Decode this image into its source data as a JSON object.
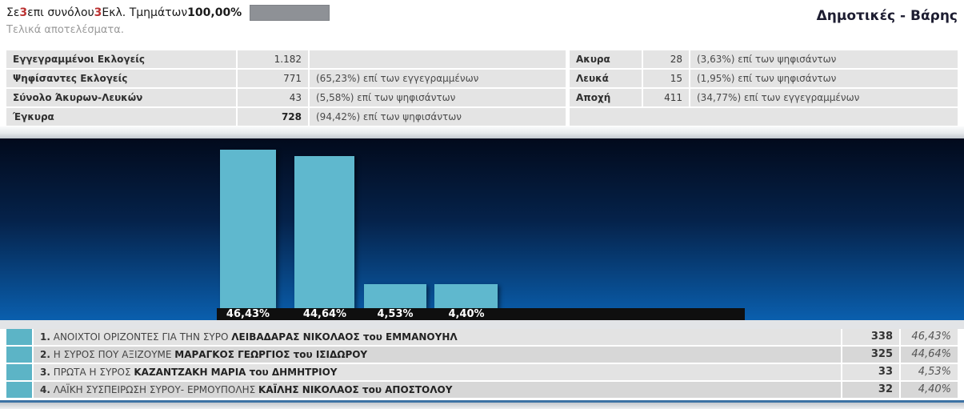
{
  "header": {
    "prefix": "Σε",
    "count_done": "3",
    "mid": "επι συνόλου",
    "count_total": "3",
    "suffix": "Εκλ. Τμημάτων",
    "percent": "100,00%",
    "status_text": "Τελικά αποτελέσματα.",
    "page_title": "Δημοτικές - Βάρης"
  },
  "summary_left": {
    "rows": [
      {
        "label": "Εγγεγραμμένοι Εκλογείς",
        "value": "1.182",
        "note": ""
      },
      {
        "label": "Ψηφίσαντες Εκλογείς",
        "value": "771",
        "note": "(65,23%) επί των εγγεγραμμένων"
      },
      {
        "label": "Σύνολο Άκυρων-Λευκών",
        "value": "43",
        "note": "(5,58%) επί των ψηφισάντων"
      },
      {
        "label": "Έγκυρα",
        "value": "728",
        "note": "(94,42%) επί των ψηφισάντων"
      }
    ]
  },
  "summary_right": {
    "rows": [
      {
        "label": "Ακυρα",
        "value": "28",
        "note": "(3,63%) επί των ψηφισάντων"
      },
      {
        "label": "Λευκά",
        "value": "15",
        "note": "(1,95%) επί των ψηφισάντων"
      },
      {
        "label": "Αποχή",
        "value": "411",
        "note": "(34,77%) επί των εγγεγραμμένων"
      }
    ]
  },
  "chart_data": {
    "type": "bar",
    "title": "",
    "xlabel": "",
    "ylabel": "",
    "categories": [
      "ΑΝΟΙΧΤΟΙ ΟΡΙΖΟΝΤΕΣ ΓΙΑ ΤΗΝ ΣΥΡΟ — ΛΕΙΒΑΔΑΡΑΣ ΝΙΚΟΛΑΟΣ του ΕΜΜΑΝΟΥΗΛ",
      "Η ΣΥΡΟΣ ΠΟΥ ΑΞΙΖΟΥΜΕ — ΜΑΡΑΓΚΟΣ ΓΕΩΡΓΙΟΣ του ΙΣΙΔΩΡΟΥ",
      "ΠΡΩΤΑ Η ΣΥΡΟΣ — ΚΑΖΑΝΤΖΑΚΗ ΜΑΡΙΑ του ΔΗΜΗΤΡΙΟΥ",
      "ΛΑΪΚΗ ΣΥΣΠΕΙΡΩΣΗ ΣΥΡΟΥ- ΕΡΜΟΥΠΟΛΗΣ — ΚΑΪΛΗΣ ΝΙΚΟΛΑΟΣ του ΑΠΟΣΤΟΛΟΥ"
    ],
    "values": [
      46.43,
      44.64,
      4.53,
      4.4
    ],
    "labels": [
      "46,43%",
      "44,64%",
      "4,53%",
      "4,40%"
    ],
    "votes": [
      338,
      325,
      33,
      32
    ],
    "ylim": [
      0,
      50
    ],
    "grid": false,
    "legend": false,
    "bar_color": "#5fb8ce",
    "background_top": "#020a1c",
    "background_bottom": "#0a5fae",
    "label_strip_color": "#0f0f0f"
  },
  "results": {
    "rows": [
      {
        "rank": "1.",
        "party": "ΑΝΟΙΧΤΟΙ ΟΡΙΖΟΝΤΕΣ ΓΙΑ ΤΗΝ ΣΥΡΟ",
        "candidate": "ΛΕΙΒΑΔΑΡΑΣ ΝΙΚΟΛΑΟΣ του ΕΜΜΑΝΟΥΗΛ",
        "votes": "338",
        "percent": "46,43%"
      },
      {
        "rank": "2.",
        "party": "Η ΣΥΡΟΣ ΠΟΥ ΑΞΙΖΟΥΜΕ",
        "candidate": "ΜΑΡΑΓΚΟΣ ΓΕΩΡΓΙΟΣ του ΙΣΙΔΩΡΟΥ",
        "votes": "325",
        "percent": "44,64%"
      },
      {
        "rank": "3.",
        "party": "ΠΡΩΤΑ Η ΣΥΡΟΣ",
        "candidate": "ΚΑΖΑΝΤΖΑΚΗ ΜΑΡΙΑ του ΔΗΜΗΤΡΙΟΥ",
        "votes": "33",
        "percent": "4,53%"
      },
      {
        "rank": "4.",
        "party": "ΛΑΪΚΗ ΣΥΣΠΕΙΡΩΣΗ ΣΥΡΟΥ- ΕΡΜΟΥΠΟΛΗΣ",
        "candidate": "ΚΑΪΛΗΣ ΝΙΚΟΛΑΟΣ του ΑΠΟΣΤΟΛΟΥ",
        "votes": "32",
        "percent": "4,40%"
      }
    ]
  },
  "colors": {
    "accent_red": "#bb3333",
    "swatch_teal": "#5cb4c6",
    "progress_gray": "#8e9196",
    "footer_line_blue": "#3d72a4"
  }
}
